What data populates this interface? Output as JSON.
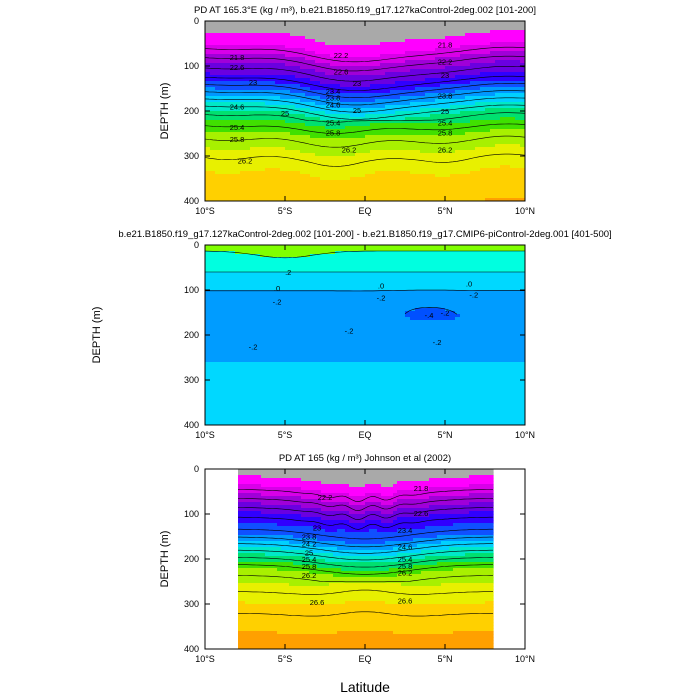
{
  "figure": {
    "xlabel": "Latitude"
  },
  "chart_data": [
    {
      "type": "heatmap",
      "title": "PD AT 165.3°E (kg / m³), b.e21.B1850.f19_g17.127kaControl-2deg.002 [101-200]",
      "ylabel": "DEPTH (m)",
      "xlim": [
        -10,
        10
      ],
      "ylim": [
        400,
        0
      ],
      "x_ticks": [
        "10°S",
        "5°S",
        "EQ",
        "5°N",
        "10°N"
      ],
      "y_ticks": [
        "0",
        "100",
        "200",
        "300",
        "400"
      ],
      "contour_levels": [
        21.8,
        22.2,
        22.6,
        23,
        23.4,
        23.8,
        24.2,
        24.6,
        25,
        25.4,
        25.8,
        26.2
      ],
      "contour_labels": [
        {
          "text": "21.8",
          "lat": -8,
          "depth": 80
        },
        {
          "text": "22.2",
          "lat": -1.5,
          "depth": 75
        },
        {
          "text": "22.6",
          "lat": -8,
          "depth": 102
        },
        {
          "text": "22.6",
          "lat": -1.5,
          "depth": 112
        },
        {
          "text": "23",
          "lat": -7,
          "depth": 135
        },
        {
          "text": "23",
          "lat": -0.5,
          "depth": 138
        },
        {
          "text": "23.4",
          "lat": -2,
          "depth": 155
        },
        {
          "text": "23.8",
          "lat": -2,
          "depth": 170
        },
        {
          "text": "24.6",
          "lat": -8,
          "depth": 190
        },
        {
          "text": "24.6",
          "lat": -2,
          "depth": 185
        },
        {
          "text": "25",
          "lat": -5,
          "depth": 205
        },
        {
          "text": "25",
          "lat": -0.5,
          "depth": 198
        },
        {
          "text": "25.4",
          "lat": -8,
          "depth": 235
        },
        {
          "text": "25.4",
          "lat": -2,
          "depth": 226
        },
        {
          "text": "25.8",
          "lat": -8,
          "depth": 262
        },
        {
          "text": "25.8",
          "lat": -2,
          "depth": 248
        },
        {
          "text": "26.2",
          "lat": -7.5,
          "depth": 310
        },
        {
          "text": "26.2",
          "lat": -1,
          "depth": 285
        },
        {
          "text": "21.8",
          "lat": 5,
          "depth": 52
        },
        {
          "text": "22.2",
          "lat": 5,
          "depth": 90
        },
        {
          "text": "23",
          "lat": 5,
          "depth": 120
        },
        {
          "text": "23.8",
          "lat": 5,
          "depth": 165
        },
        {
          "text": "25",
          "lat": 5,
          "depth": 200
        },
        {
          "text": "25.4",
          "lat": 5,
          "depth": 225
        },
        {
          "text": "25.8",
          "lat": 5,
          "depth": 248
        },
        {
          "text": "26.2",
          "lat": 5,
          "depth": 285
        }
      ]
    },
    {
      "type": "heatmap",
      "title": "b.e21.B1850.f19_g17.127kaControl-2deg.002 [101-200] - b.e21.B1850.f19_g17.CMIP6-piControl-2deg.001 [401-500]",
      "ylabel": "DEPTH (m)",
      "xlim": [
        -10,
        10
      ],
      "ylim": [
        400,
        0
      ],
      "x_ticks": [
        "10°S",
        "5°S",
        "EQ",
        "5°N",
        "10°N"
      ],
      "y_ticks": [
        "0",
        "100",
        "200",
        "300",
        "400"
      ],
      "contour_levels": [
        -0.4,
        -0.2,
        0,
        0.2
      ],
      "contour_labels": [
        {
          "text": ".2",
          "lat": -4.8,
          "depth": 60
        },
        {
          "text": ".0",
          "lat": -5.5,
          "depth": 95
        },
        {
          "text": "-.2",
          "lat": -5.5,
          "depth": 125
        },
        {
          "text": ".0",
          "lat": 1,
          "depth": 90
        },
        {
          "text": "-.2",
          "lat": 1,
          "depth": 117
        },
        {
          "text": "-.2",
          "lat": -1,
          "depth": 190
        },
        {
          "text": "-.2",
          "lat": 5,
          "depth": 150
        },
        {
          "text": "-.4",
          "lat": 4,
          "depth": 155
        },
        {
          "text": ".0",
          "lat": 6.5,
          "depth": 85
        },
        {
          "text": "-.2",
          "lat": 6.8,
          "depth": 110
        },
        {
          "text": "-.2",
          "lat": -7,
          "depth": 225
        },
        {
          "text": "-.2",
          "lat": 4.5,
          "depth": 215
        }
      ]
    },
    {
      "type": "heatmap",
      "title": "PD AT 165 (kg / m³) Johnson et al (2002)",
      "ylabel": "DEPTH (m)",
      "xlim": [
        -10,
        10
      ],
      "ylim": [
        400,
        0
      ],
      "data_xlim": [
        -8,
        8
      ],
      "x_ticks": [
        "10°S",
        "5°S",
        "EQ",
        "5°N",
        "10°N"
      ],
      "y_ticks": [
        "0",
        "100",
        "200",
        "300",
        "400"
      ],
      "contour_levels": [
        21.8,
        22.2,
        22.6,
        23,
        23.4,
        23.8,
        24.2,
        24.6,
        25,
        25.4,
        25.8,
        26.2,
        26.6
      ],
      "contour_labels": [
        {
          "text": "21.8",
          "lat": 3.5,
          "depth": 42
        },
        {
          "text": "22.2",
          "lat": -2.5,
          "depth": 62
        },
        {
          "text": "22.6",
          "lat": 3.5,
          "depth": 98
        },
        {
          "text": "23",
          "lat": -3,
          "depth": 130
        },
        {
          "text": "23.4",
          "lat": 2.5,
          "depth": 136
        },
        {
          "text": "23.8",
          "lat": -3.5,
          "depth": 150
        },
        {
          "text": "24.2",
          "lat": -3.5,
          "depth": 165
        },
        {
          "text": "24.6",
          "lat": 2.5,
          "depth": 172
        },
        {
          "text": "25",
          "lat": -3.5,
          "depth": 185
        },
        {
          "text": "25.4",
          "lat": -3.5,
          "depth": 200
        },
        {
          "text": "25.8",
          "lat": -3.5,
          "depth": 215
        },
        {
          "text": "26.2",
          "lat": -3.5,
          "depth": 235
        },
        {
          "text": "25.4",
          "lat": 2.5,
          "depth": 200
        },
        {
          "text": "25.8",
          "lat": 2.5,
          "depth": 215
        },
        {
          "text": "26.2",
          "lat": 2.5,
          "depth": 230
        },
        {
          "text": "26.6",
          "lat": -3,
          "depth": 295
        },
        {
          "text": "26.6",
          "lat": 2.5,
          "depth": 292
        }
      ]
    }
  ]
}
